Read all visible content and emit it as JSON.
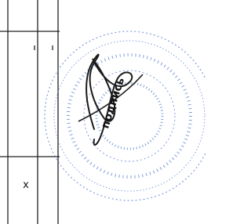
{
  "signature_label": "подпись",
  "mark": "х"
}
